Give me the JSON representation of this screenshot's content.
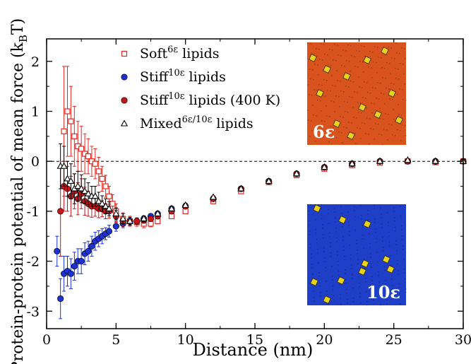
{
  "chart_data": {
    "type": "scatter",
    "xlabel": "Distance (nm)",
    "ylabel": "Protein-protein potential of mean force (k",
    "ylabel_sub": "B",
    "ylabel_tail": "T)",
    "xlim": [
      0,
      30
    ],
    "ylim": [
      -3.35,
      2.45
    ],
    "x_ticks": [
      0,
      5,
      10,
      15,
      20,
      25,
      30
    ],
    "y_ticks": [
      -3,
      -2,
      -1,
      0,
      1,
      2
    ],
    "x_tick_labels": [
      "0",
      "5",
      "10",
      "15",
      "20",
      "25",
      "30"
    ],
    "y_tick_labels": [
      "-3",
      "-2",
      "-1",
      "0",
      "1",
      "2"
    ],
    "reference_line": {
      "y": 0,
      "style": "dashed"
    },
    "legend_placement": "top-left",
    "series": [
      {
        "name": "Soft",
        "superscript": "6ε",
        "suffix": " lipids",
        "marker": "open-square",
        "color": "#e8261f",
        "x": [
          1.25,
          1.5,
          1.75,
          2.0,
          2.25,
          2.5,
          2.75,
          3.0,
          3.25,
          3.5,
          3.75,
          4.0,
          4.25,
          4.5,
          4.75,
          5.0,
          5.5,
          6.0,
          6.5,
          7.0,
          7.5,
          8.0,
          9.0,
          10.0,
          12.0,
          14.0,
          16.0,
          18.0,
          20.0,
          22.0,
          24.0,
          26.0,
          28.0,
          30.0
        ],
        "y": [
          0.6,
          1.0,
          0.8,
          0.5,
          0.3,
          0.25,
          0.15,
          0.1,
          0.0,
          -0.05,
          -0.2,
          -0.35,
          -0.5,
          -0.7,
          -0.85,
          -1.0,
          -1.15,
          -1.2,
          -1.22,
          -1.25,
          -1.25,
          -1.2,
          -1.1,
          -1.0,
          -0.8,
          -0.6,
          -0.42,
          -0.28,
          -0.15,
          -0.08,
          -0.03,
          0.0,
          -0.02,
          0.0
        ],
        "err": [
          1.3,
          0.9,
          0.7,
          0.6,
          0.5,
          0.45,
          0.4,
          0.35,
          0.3,
          0.3,
          0.28,
          0.25,
          0.22,
          0.2,
          0.18,
          0.15,
          0.12,
          0.1,
          0.08,
          0.08,
          0.06,
          0.05,
          0.04,
          0.04,
          0.03,
          0.03,
          0.03,
          0.03,
          0.03,
          0.03,
          0.03,
          0.03,
          0.03,
          0.03
        ]
      },
      {
        "name": "Stiff",
        "superscript": "10ε",
        "suffix": " lipids",
        "marker": "filled-circle",
        "color": "#1c32d6",
        "x": [
          0.75,
          1.0,
          1.25,
          1.5,
          1.75,
          2.0,
          2.25,
          2.5,
          2.75,
          3.0,
          3.25,
          3.5,
          3.75,
          4.0,
          4.25,
          4.5,
          5.0,
          5.5,
          6.0,
          6.5,
          7.0,
          7.5,
          8.0,
          9.0,
          10.0,
          12.0,
          14.0,
          16.0,
          18.0,
          20.0,
          22.0,
          24.0,
          26.0,
          28.0,
          30.0
        ],
        "y": [
          -1.8,
          -2.75,
          -2.25,
          -2.2,
          -2.25,
          -2.1,
          -2.0,
          -2.0,
          -1.85,
          -1.8,
          -1.7,
          -1.6,
          -1.55,
          -1.5,
          -1.45,
          -1.4,
          -1.3,
          -1.25,
          -1.2,
          -1.2,
          -1.15,
          -1.1,
          -1.05,
          -0.95,
          -0.9,
          -0.75,
          -0.55,
          -0.4,
          -0.25,
          -0.12,
          -0.05,
          0.0,
          0.0,
          0.0,
          0.0
        ],
        "err": [
          0.3,
          0.4,
          0.35,
          0.3,
          0.3,
          0.28,
          0.25,
          0.25,
          0.22,
          0.2,
          0.2,
          0.18,
          0.16,
          0.15,
          0.12,
          0.12,
          0.1,
          0.08,
          0.07,
          0.06,
          0.05,
          0.05,
          0.04,
          0.04,
          0.04,
          0.03,
          0.03,
          0.03,
          0.03,
          0.03,
          0.03,
          0.03,
          0.03,
          0.03,
          0.03
        ]
      },
      {
        "name": "Stiff",
        "superscript": "10ε",
        "suffix": " lipids (400 K)",
        "marker": "filled-circle",
        "color": "#c8141b",
        "x": [
          1.0,
          1.25,
          1.5,
          1.75,
          2.0,
          2.25,
          2.5,
          2.75,
          3.0,
          3.25,
          3.5,
          3.75,
          4.0,
          4.25,
          4.5,
          5.0,
          5.5,
          6.0,
          6.5,
          7.0,
          7.5,
          8.0,
          9.0,
          10.0,
          12.0,
          14.0,
          16.0,
          18.0,
          20.0,
          22.0,
          24.0,
          26.0,
          28.0,
          30.0
        ],
        "y": [
          -1.0,
          -0.5,
          -0.55,
          -0.7,
          -0.6,
          -0.75,
          -0.65,
          -0.8,
          -0.85,
          -0.9,
          -0.9,
          -0.95,
          -0.95,
          -1.0,
          -1.0,
          -1.1,
          -1.2,
          -1.2,
          -1.2,
          -1.18,
          -1.15,
          -1.1,
          -1.0,
          -0.9,
          -0.75,
          -0.55,
          -0.4,
          -0.25,
          -0.12,
          -0.05,
          0.0,
          0.0,
          0.0,
          0.0
        ],
        "err": [
          0.9,
          0.5,
          0.45,
          0.4,
          0.35,
          0.32,
          0.3,
          0.28,
          0.25,
          0.22,
          0.2,
          0.18,
          0.16,
          0.15,
          0.14,
          0.12,
          0.1,
          0.08,
          0.07,
          0.06,
          0.05,
          0.05,
          0.04,
          0.04,
          0.03,
          0.03,
          0.03,
          0.03,
          0.03,
          0.03,
          0.03,
          0.03,
          0.03,
          0.03
        ]
      },
      {
        "name": "Mixed",
        "superscript": "6ε/10ε",
        "suffix": " lipids",
        "marker": "open-triangle",
        "color": "#000000",
        "x": [
          1.0,
          1.25,
          1.5,
          1.75,
          2.0,
          2.25,
          2.5,
          2.75,
          3.0,
          3.25,
          3.5,
          3.75,
          4.0,
          4.25,
          4.5,
          5.0,
          5.5,
          6.0,
          7.0,
          8.0,
          9.0,
          10.0,
          12.0,
          14.0,
          16.0,
          18.0,
          20.0,
          22.0,
          24.0,
          26.0,
          28.0,
          30.0
        ],
        "y": [
          -0.1,
          -0.1,
          -0.35,
          -0.4,
          -0.55,
          -0.5,
          -0.55,
          -0.6,
          -0.65,
          -0.7,
          -0.7,
          -0.8,
          -0.85,
          -0.9,
          -0.95,
          -1.05,
          -1.15,
          -1.2,
          -1.15,
          -1.05,
          -0.95,
          -0.88,
          -0.72,
          -0.55,
          -0.4,
          -0.25,
          -0.12,
          -0.05,
          0.0,
          0.02,
          0.0,
          0.0
        ],
        "err": [
          0.45,
          0.4,
          0.35,
          0.35,
          0.3,
          0.3,
          0.28,
          0.25,
          0.22,
          0.2,
          0.2,
          0.18,
          0.16,
          0.15,
          0.14,
          0.12,
          0.1,
          0.08,
          0.06,
          0.05,
          0.04,
          0.04,
          0.03,
          0.03,
          0.03,
          0.03,
          0.03,
          0.03,
          0.03,
          0.03,
          0.03,
          0.03
        ]
      }
    ],
    "insets": [
      {
        "label": "6ε",
        "background": "#d9531e",
        "particle_color": "#e8d21c",
        "placement": "top-right"
      },
      {
        "label": "10ε",
        "background": "#1f3fc8",
        "particle_color": "#e8d21c",
        "placement": "bottom-right"
      }
    ]
  }
}
